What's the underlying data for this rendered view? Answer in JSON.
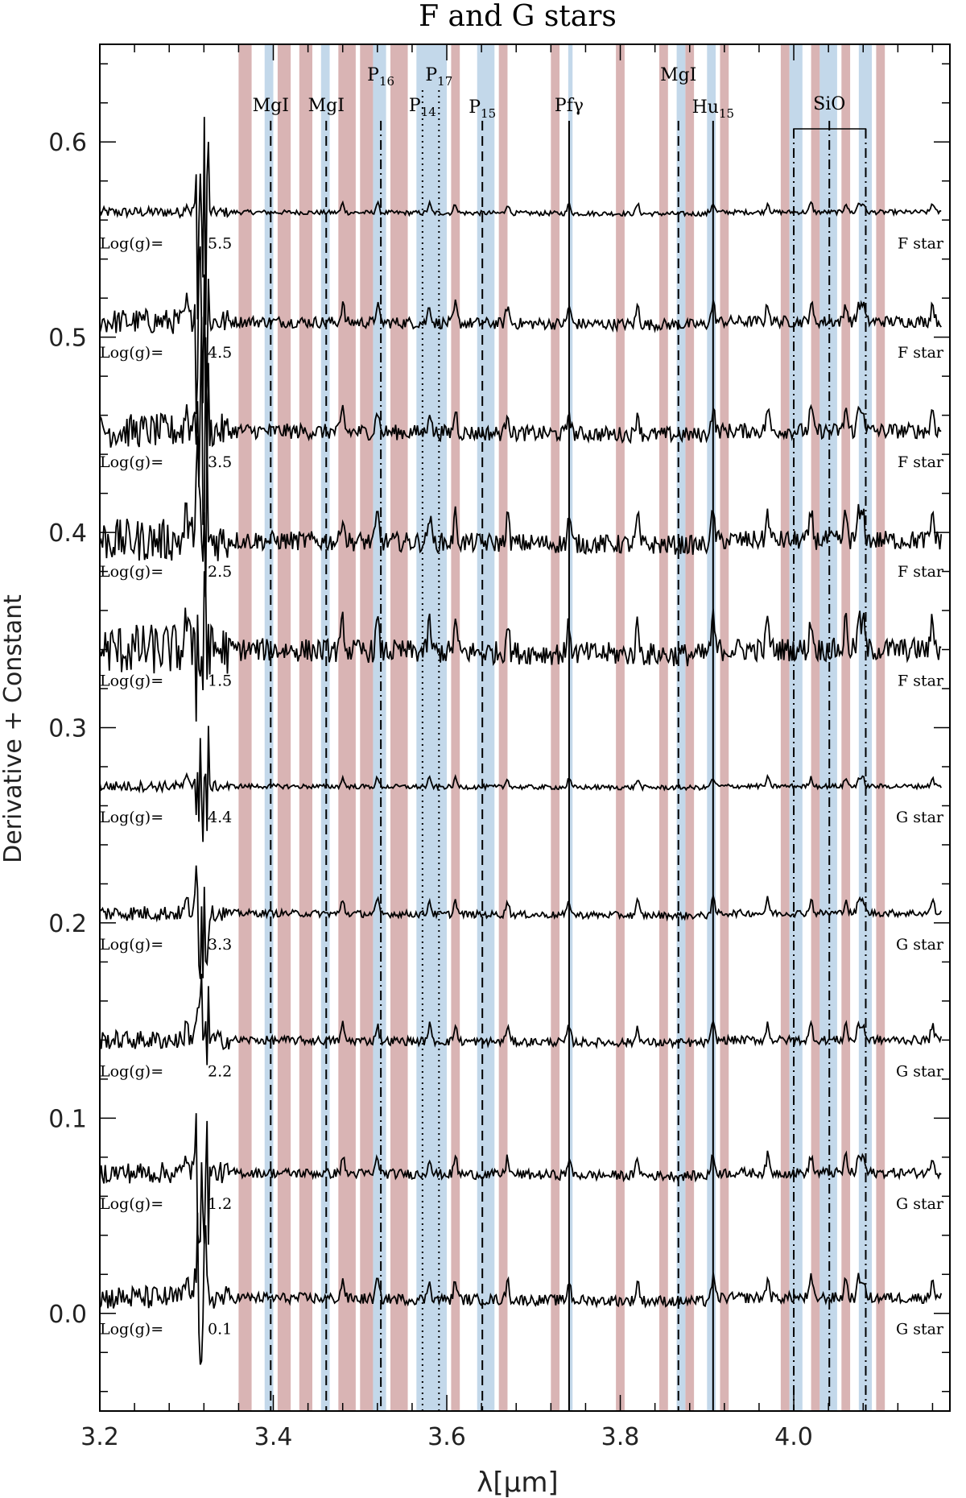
{
  "chart_data": {
    "type": "line",
    "title": "F and G stars",
    "xlabel": "λ[μm]",
    "ylabel": "Derivative + Constant",
    "xlim": [
      3.2,
      4.18
    ],
    "ylim": [
      -0.05,
      0.65
    ],
    "x_ticks": [
      3.2,
      3.4,
      3.6,
      3.8,
      4.0
    ],
    "x_tick_labels": [
      "3.2",
      "3.4",
      "3.6",
      "3.8",
      "4.0"
    ],
    "y_ticks": [
      0.0,
      0.1,
      0.2,
      0.3,
      0.4,
      0.5,
      0.6
    ],
    "y_tick_labels": [
      "0.0",
      "0.1",
      "0.2",
      "0.3",
      "0.4",
      "0.5",
      "0.6"
    ],
    "grid": false,
    "colors": {
      "red_band": "#d9b4b4",
      "blue_band": "#c3d8ea",
      "line": "#000000"
    },
    "red_bands": [
      [
        3.36,
        3.375
      ],
      [
        3.405,
        3.42
      ],
      [
        3.43,
        3.445
      ],
      [
        3.475,
        3.495
      ],
      [
        3.5,
        3.515
      ],
      [
        3.535,
        3.555
      ],
      [
        3.605,
        3.615
      ],
      [
        3.66,
        3.67
      ],
      [
        3.72,
        3.73
      ],
      [
        3.795,
        3.805
      ],
      [
        3.845,
        3.855
      ],
      [
        3.875,
        3.885
      ],
      [
        3.915,
        3.925
      ],
      [
        3.985,
        3.995
      ],
      [
        4.02,
        4.03
      ],
      [
        4.055,
        4.065
      ],
      [
        4.095,
        4.105
      ]
    ],
    "blue_bands": [
      [
        3.39,
        3.4
      ],
      [
        3.455,
        3.465
      ],
      [
        3.515,
        3.53
      ],
      [
        3.565,
        3.6
      ],
      [
        3.635,
        3.655
      ],
      [
        3.74,
        3.745
      ],
      [
        3.865,
        3.875
      ],
      [
        3.9,
        3.91
      ],
      [
        3.995,
        4.01
      ],
      [
        4.03,
        4.05
      ],
      [
        4.075,
        4.09
      ]
    ],
    "line_ids": [
      {
        "label": "MgI",
        "sub": "",
        "x": 3.397,
        "style": "dashed"
      },
      {
        "label": "MgI",
        "sub": "",
        "x": 3.461,
        "style": "dashed"
      },
      {
        "label": "P",
        "sub": "16",
        "x": 3.524,
        "style": "dashdot"
      },
      {
        "label": "P",
        "sub": "14",
        "x": 3.572,
        "style": "dotted"
      },
      {
        "label": "P",
        "sub": "17",
        "x": 3.591,
        "style": "dotted"
      },
      {
        "label": "P",
        "sub": "15",
        "x": 3.641,
        "style": "dashed"
      },
      {
        "label": "Pfγ",
        "sub": "",
        "x": 3.741,
        "style": "solid"
      },
      {
        "label": "MgI",
        "sub": "",
        "x": 3.867,
        "style": "dashed"
      },
      {
        "label": "Hu",
        "sub": "15",
        "x": 3.907,
        "style": "solid"
      },
      {
        "label": "SiO",
        "sub": "",
        "x": 4.041,
        "style": "dashdot"
      }
    ],
    "extra_lines": [
      {
        "x": 4.0,
        "style": "dashdot"
      },
      {
        "x": 4.083,
        "style": "dashdot"
      }
    ],
    "series": [
      {
        "type_label": "F star",
        "logg_label": "Log(g)=",
        "logg": "5.5",
        "offset": 0.564,
        "noise": 0.0012,
        "peak_scale": 0.4
      },
      {
        "type_label": "F star",
        "logg_label": "Log(g)=",
        "logg": "4.5",
        "offset": 0.508,
        "noise": 0.003,
        "peak_scale": 0.8
      },
      {
        "type_label": "F star",
        "logg_label": "Log(g)=",
        "logg": "3.5",
        "offset": 0.452,
        "noise": 0.004,
        "peak_scale": 1.0
      },
      {
        "type_label": "F star",
        "logg_label": "Log(g)=",
        "logg": "2.5",
        "offset": 0.396,
        "noise": 0.005,
        "peak_scale": 1.2
      },
      {
        "type_label": "F star",
        "logg_label": "Log(g)=",
        "logg": "1.5",
        "offset": 0.34,
        "noise": 0.006,
        "peak_scale": 1.3
      },
      {
        "type_label": "G star",
        "logg_label": "Log(g)=",
        "logg": "4.4",
        "offset": 0.27,
        "noise": 0.0012,
        "peak_scale": 0.35
      },
      {
        "type_label": "G star",
        "logg_label": "Log(g)=",
        "logg": "3.3",
        "offset": 0.205,
        "noise": 0.0018,
        "peak_scale": 0.6
      },
      {
        "type_label": "G star",
        "logg_label": "Log(g)=",
        "logg": "2.2",
        "offset": 0.14,
        "noise": 0.0022,
        "peak_scale": 0.7
      },
      {
        "type_label": "G star",
        "logg_label": "Log(g)=",
        "logg": "1.2",
        "offset": 0.072,
        "noise": 0.0025,
        "peak_scale": 0.75
      },
      {
        "type_label": "G star",
        "logg_label": "Log(g)=",
        "logg": "0.1",
        "offset": 0.008,
        "noise": 0.0028,
        "peak_scale": 0.85
      }
    ]
  }
}
